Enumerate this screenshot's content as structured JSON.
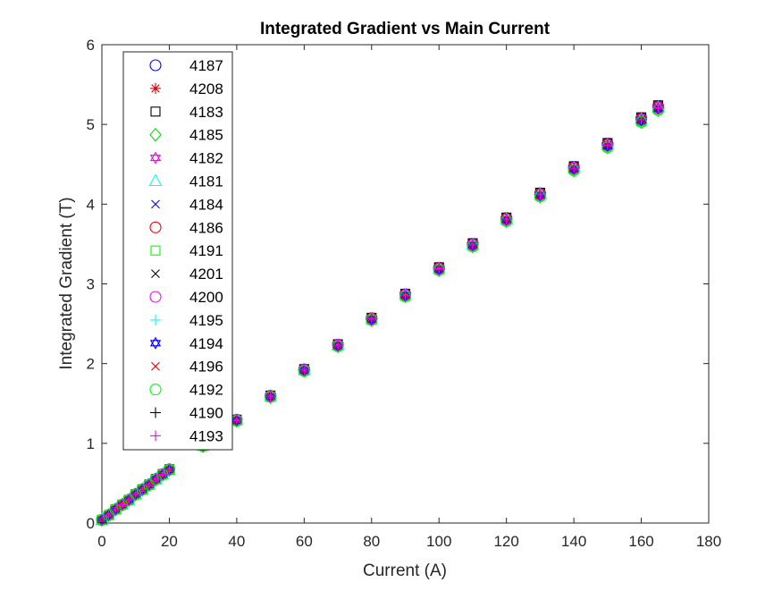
{
  "chart_data": {
    "type": "scatter",
    "title": "Integrated Gradient vs Main Current",
    "xlabel": "Current (A)",
    "ylabel": "Integrated Gradient (T)",
    "xlim": [
      0,
      180
    ],
    "ylim": [
      0,
      6
    ],
    "xticks": [
      "0",
      "20",
      "40",
      "60",
      "80",
      "100",
      "120",
      "140",
      "160",
      "180"
    ],
    "yticks": [
      "0",
      "1",
      "2",
      "3",
      "4",
      "5",
      "6"
    ],
    "grid": false,
    "legend_position": "top-left",
    "x": [
      0,
      2,
      4,
      6,
      8,
      10,
      12,
      14,
      16,
      18,
      20,
      30,
      40,
      50,
      60,
      70,
      80,
      90,
      100,
      110,
      120,
      130,
      140,
      150,
      160,
      165
    ],
    "series": [
      {
        "name": "4187",
        "marker": "circle",
        "color": "#0000ff",
        "offset": 0.02
      },
      {
        "name": "4208",
        "marker": "asterisk",
        "color": "#cc0000",
        "offset": 0.0
      },
      {
        "name": "4183",
        "marker": "square",
        "color": "#000000",
        "offset": 0.03
      },
      {
        "name": "4185",
        "marker": "diamond",
        "color": "#00dd00",
        "offset": -0.03
      },
      {
        "name": "4182",
        "marker": "hexagram",
        "color": "#ff00ff",
        "offset": 0.01
      },
      {
        "name": "4181",
        "marker": "triangle",
        "color": "#00ffff",
        "offset": 0.0
      },
      {
        "name": "4184",
        "marker": "x",
        "color": "#0000ff",
        "offset": -0.01
      },
      {
        "name": "4186",
        "marker": "circle",
        "color": "#ff0000",
        "offset": 0.01
      },
      {
        "name": "4191",
        "marker": "square",
        "color": "#00ff00",
        "offset": -0.02
      },
      {
        "name": "4201",
        "marker": "x",
        "color": "#000000",
        "offset": 0.0
      },
      {
        "name": "4200",
        "marker": "circle",
        "color": "#ff00ff",
        "offset": 0.0
      },
      {
        "name": "4195",
        "marker": "plus",
        "color": "#00ffff",
        "offset": 0.02
      },
      {
        "name": "4194",
        "marker": "hexagram",
        "color": "#0000ff",
        "offset": -0.01
      },
      {
        "name": "4196",
        "marker": "x",
        "color": "#ff0000",
        "offset": 0.01
      },
      {
        "name": "4192",
        "marker": "circle",
        "color": "#00ff00",
        "offset": -0.03
      },
      {
        "name": "4190",
        "marker": "plus",
        "color": "#000000",
        "offset": 0.0
      },
      {
        "name": "4193",
        "marker": "plus",
        "color": "#ff00ff",
        "offset": 0.0
      }
    ],
    "y": [
      0.04,
      0.1,
      0.17,
      0.23,
      0.29,
      0.36,
      0.42,
      0.48,
      0.55,
      0.61,
      0.67,
      0.97,
      1.29,
      1.59,
      1.92,
      2.23,
      2.56,
      2.86,
      3.19,
      3.49,
      3.81,
      4.12,
      4.45,
      4.74,
      5.06,
      5.21
    ]
  }
}
